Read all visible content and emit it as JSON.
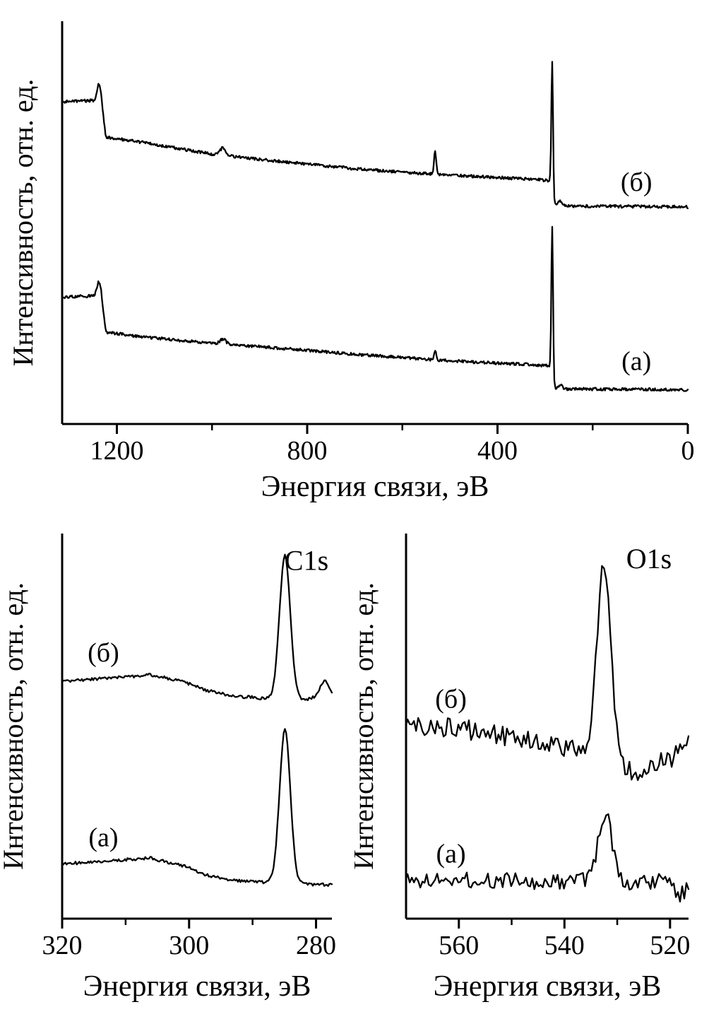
{
  "colors": {
    "foreground": "#000000",
    "background": "#ffffff"
  },
  "chart_data": [
    {
      "type": "line",
      "panel": "survey",
      "title": "",
      "xlabel": "Энергия связи, эВ",
      "ylabel": "Интенсивность, отн. ед.",
      "x_range": [
        1315,
        0
      ],
      "x_ticks_major": [
        1200,
        800,
        400,
        0
      ],
      "x_ticks_minor": [
        1000,
        600,
        200
      ],
      "y_axis_ticks": "none",
      "grid": false,
      "series": [
        {
          "name": "(б)",
          "seed": 7,
          "noise": 0.0035,
          "sample_step": 1.5,
          "baseline": [
            [
              1315,
              0.8
            ],
            [
              1248,
              0.803
            ],
            [
              1233,
              0.803
            ],
            [
              1223,
              0.712
            ],
            [
              1150,
              0.7
            ],
            [
              1000,
              0.67
            ],
            [
              900,
              0.657
            ],
            [
              800,
              0.645
            ],
            [
              700,
              0.634
            ],
            [
              600,
              0.625
            ],
            [
              500,
              0.618
            ],
            [
              400,
              0.612
            ],
            [
              320,
              0.607
            ],
            [
              292,
              0.604
            ],
            [
              287,
              0.6
            ],
            [
              283,
              0.556
            ],
            [
              280,
              0.545
            ],
            [
              270,
              0.541
            ],
            [
              100,
              0.54
            ],
            [
              0,
              0.539
            ]
          ],
          "peaks": [
            {
              "c": 1238,
              "h": 0.04,
              "w": 4
            },
            {
              "c": 977,
              "h": 0.018,
              "w": 6
            },
            {
              "c": 531,
              "h": 0.058,
              "w": 2.2
            },
            {
              "c": 285,
              "h": 0.32,
              "w": 1.8
            },
            {
              "c": 268,
              "h": 0.012,
              "w": 4
            }
          ]
        },
        {
          "name": "(а)",
          "seed": 13,
          "noise": 0.0035,
          "sample_step": 1.5,
          "baseline": [
            [
              1315,
              0.315
            ],
            [
              1248,
              0.318
            ],
            [
              1233,
              0.318
            ],
            [
              1223,
              0.228
            ],
            [
              1150,
              0.217
            ],
            [
              1000,
              0.2
            ],
            [
              900,
              0.192
            ],
            [
              800,
              0.183
            ],
            [
              700,
              0.173
            ],
            [
              600,
              0.165
            ],
            [
              500,
              0.157
            ],
            [
              400,
              0.151
            ],
            [
              320,
              0.147
            ],
            [
              292,
              0.144
            ],
            [
              287,
              0.14
            ],
            [
              283,
              0.1
            ],
            [
              280,
              0.09
            ],
            [
              270,
              0.087
            ],
            [
              100,
              0.086
            ],
            [
              0,
              0.085
            ]
          ],
          "peaks": [
            {
              "c": 1238,
              "h": 0.035,
              "w": 4
            },
            {
              "c": 977,
              "h": 0.013,
              "w": 6
            },
            {
              "c": 531,
              "h": 0.022,
              "w": 2.2
            },
            {
              "c": 285,
              "h": 0.37,
              "w": 1.8
            },
            {
              "c": 268,
              "h": 0.01,
              "w": 4
            }
          ]
        }
      ],
      "annotations": [
        {
          "text": "(б)",
          "x": 108,
          "y": 0.6,
          "kind": "curve-label"
        },
        {
          "text": "(а)",
          "x": 108,
          "y": 0.155,
          "kind": "curve-label"
        }
      ]
    },
    {
      "type": "line",
      "panel": "c1s",
      "title": "C1s",
      "xlabel": "Энергия связи, эВ",
      "ylabel": "Интенсивность, отн. ед.",
      "x_range": [
        320,
        277.5
      ],
      "x_ticks_major": [
        320,
        300,
        280
      ],
      "x_ticks_minor": [
        310,
        290
      ],
      "y_axis_ticks": "none",
      "grid": false,
      "series": [
        {
          "name": "(б)",
          "seed": 21,
          "noise": 0.004,
          "sample_step": 0.2,
          "baseline": [
            [
              320,
              0.616
            ],
            [
              313,
              0.624
            ],
            [
              306,
              0.633
            ],
            [
              301,
              0.616
            ],
            [
              297,
              0.592
            ],
            [
              293,
              0.578
            ],
            [
              288,
              0.572
            ],
            [
              285,
              0.57
            ],
            [
              283,
              0.568
            ],
            [
              281.5,
              0.57
            ],
            [
              279.5,
              0.575
            ],
            [
              277.5,
              0.573
            ]
          ],
          "peaks": [
            {
              "c": 284.9,
              "h": 0.372,
              "w": 0.85
            },
            {
              "c": 278.6,
              "h": 0.042,
              "w": 0.75
            }
          ]
        },
        {
          "name": "(а)",
          "seed": 31,
          "noise": 0.004,
          "sample_step": 0.2,
          "baseline": [
            [
              320,
              0.142
            ],
            [
              313,
              0.15
            ],
            [
              306,
              0.157
            ],
            [
              301,
              0.138
            ],
            [
              297,
              0.112
            ],
            [
              293,
              0.099
            ],
            [
              288,
              0.094
            ],
            [
              285,
              0.092
            ],
            [
              283,
              0.09
            ],
            [
              277.5,
              0.088
            ]
          ],
          "peaks": [
            {
              "c": 284.9,
              "h": 0.398,
              "w": 0.85
            }
          ]
        }
      ],
      "annotations": [
        {
          "text": "(б)",
          "x": 313.5,
          "y": 0.69,
          "kind": "curve-label"
        },
        {
          "text": "(а)",
          "x": 313.5,
          "y": 0.21,
          "kind": "curve-label"
        },
        {
          "text": "C1s",
          "x": 281.5,
          "y": 0.93,
          "kind": "peak-label"
        }
      ]
    },
    {
      "type": "line",
      "panel": "o1s",
      "title": "O1s",
      "xlabel": "Энергия связи, эВ",
      "ylabel": "Интенсивность, отн. ед.",
      "x_range": [
        570,
        516.5
      ],
      "x_ticks_major": [
        560,
        540,
        520
      ],
      "x_ticks_minor": [
        550,
        530
      ],
      "y_axis_ticks": "none",
      "grid": false,
      "series": [
        {
          "name": "(б)",
          "seed": 41,
          "noise": 0.027,
          "sample_step": 0.4,
          "baseline": [
            [
              570,
              0.497
            ],
            [
              563,
              0.495
            ],
            [
              556,
              0.487
            ],
            [
              549,
              0.468
            ],
            [
              543,
              0.447
            ],
            [
              538,
              0.442
            ],
            [
              535,
              0.452
            ],
            [
              531,
              0.43
            ],
            [
              528,
              0.39
            ],
            [
              526,
              0.378
            ],
            [
              523,
              0.398
            ],
            [
              520,
              0.415
            ],
            [
              517.5,
              0.44
            ],
            [
              516.5,
              0.455
            ]
          ],
          "peaks": [
            {
              "c": 532.5,
              "h": 0.488,
              "w": 1.25
            }
          ]
        },
        {
          "name": "(а)",
          "seed": 53,
          "noise": 0.021,
          "sample_step": 0.4,
          "baseline": [
            [
              570,
              0.1
            ],
            [
              563,
              0.103
            ],
            [
              556,
              0.1
            ],
            [
              549,
              0.097
            ],
            [
              543,
              0.096
            ],
            [
              538,
              0.099
            ],
            [
              534,
              0.098
            ],
            [
              530,
              0.094
            ],
            [
              526,
              0.092
            ],
            [
              522,
              0.096
            ],
            [
              519.5,
              0.083
            ],
            [
              518,
              0.06
            ],
            [
              517,
              0.075
            ],
            [
              516.5,
              0.095
            ]
          ],
          "peaks": [
            {
              "c": 532.3,
              "h": 0.175,
              "w": 1.3
            }
          ]
        }
      ],
      "annotations": [
        {
          "text": "(б)",
          "x": 561.5,
          "y": 0.57,
          "kind": "curve-label"
        },
        {
          "text": "(а)",
          "x": 561.5,
          "y": 0.168,
          "kind": "curve-label"
        },
        {
          "text": "O1s",
          "x": 524,
          "y": 0.935,
          "kind": "peak-label"
        }
      ]
    }
  ]
}
